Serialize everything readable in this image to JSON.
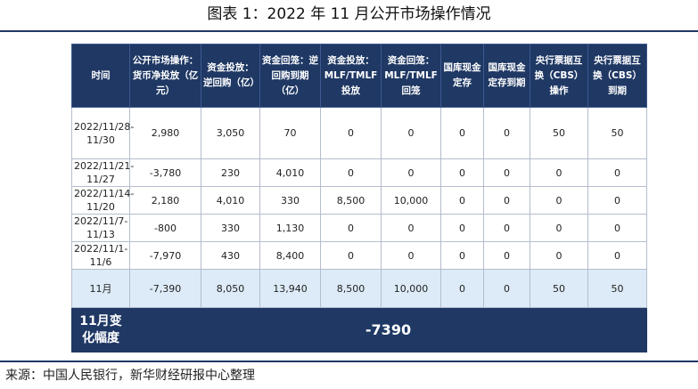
{
  "title": "图表 1：2022 年 11 月公开市场操作情况",
  "table": {
    "headers": [
      "时间",
      "公开市场操作：货币净投放（亿元）",
      "资金投放：逆回购（亿）",
      "资金回笼：逆回购到期（亿）",
      "资金投放：MLF/TMLF投放",
      "资金回笼：MLF/TMLF回笼",
      "国库现金定存",
      "国库现金定存到期",
      "央行票据互换（CBS）操作",
      "央行票据互换（CBS）到期"
    ],
    "rows": [
      [
        "2022/11/28-11/30",
        "2,980",
        "3,050",
        "70",
        "0",
        "0",
        "0",
        "0",
        "50",
        "50"
      ],
      [
        "2022/11/21-11/27",
        "-3,780",
        "230",
        "4,010",
        "0",
        "0",
        "0",
        "0",
        "0",
        "0"
      ],
      [
        "2022/11/14-11/20",
        "2,180",
        "4,010",
        "330",
        "8,500",
        "10,000",
        "0",
        "0",
        "0",
        "0"
      ],
      [
        "2022/11/7-11/13",
        "-800",
        "330",
        "1,130",
        "0",
        "0",
        "0",
        "0",
        "0",
        "0"
      ],
      [
        "2022/11/1-11/6",
        "-7,970",
        "430",
        "8,400",
        "0",
        "0",
        "0",
        "0",
        "0",
        "0"
      ],
      [
        "11月",
        "-7,390",
        "8,050",
        "13,940",
        "8,500",
        "10,000",
        "0",
        "0",
        "50",
        "50"
      ]
    ],
    "footer": {
      "label": "11月变化幅度",
      "value": "-7390"
    }
  },
  "source": "来源：中国人民银行，新华财经研报中心整理",
  "colors": {
    "header_bg": "#1f3864",
    "header_text": "#ffffff",
    "summary_row_bg": "#dcebf7",
    "rule": "#1f3864"
  }
}
